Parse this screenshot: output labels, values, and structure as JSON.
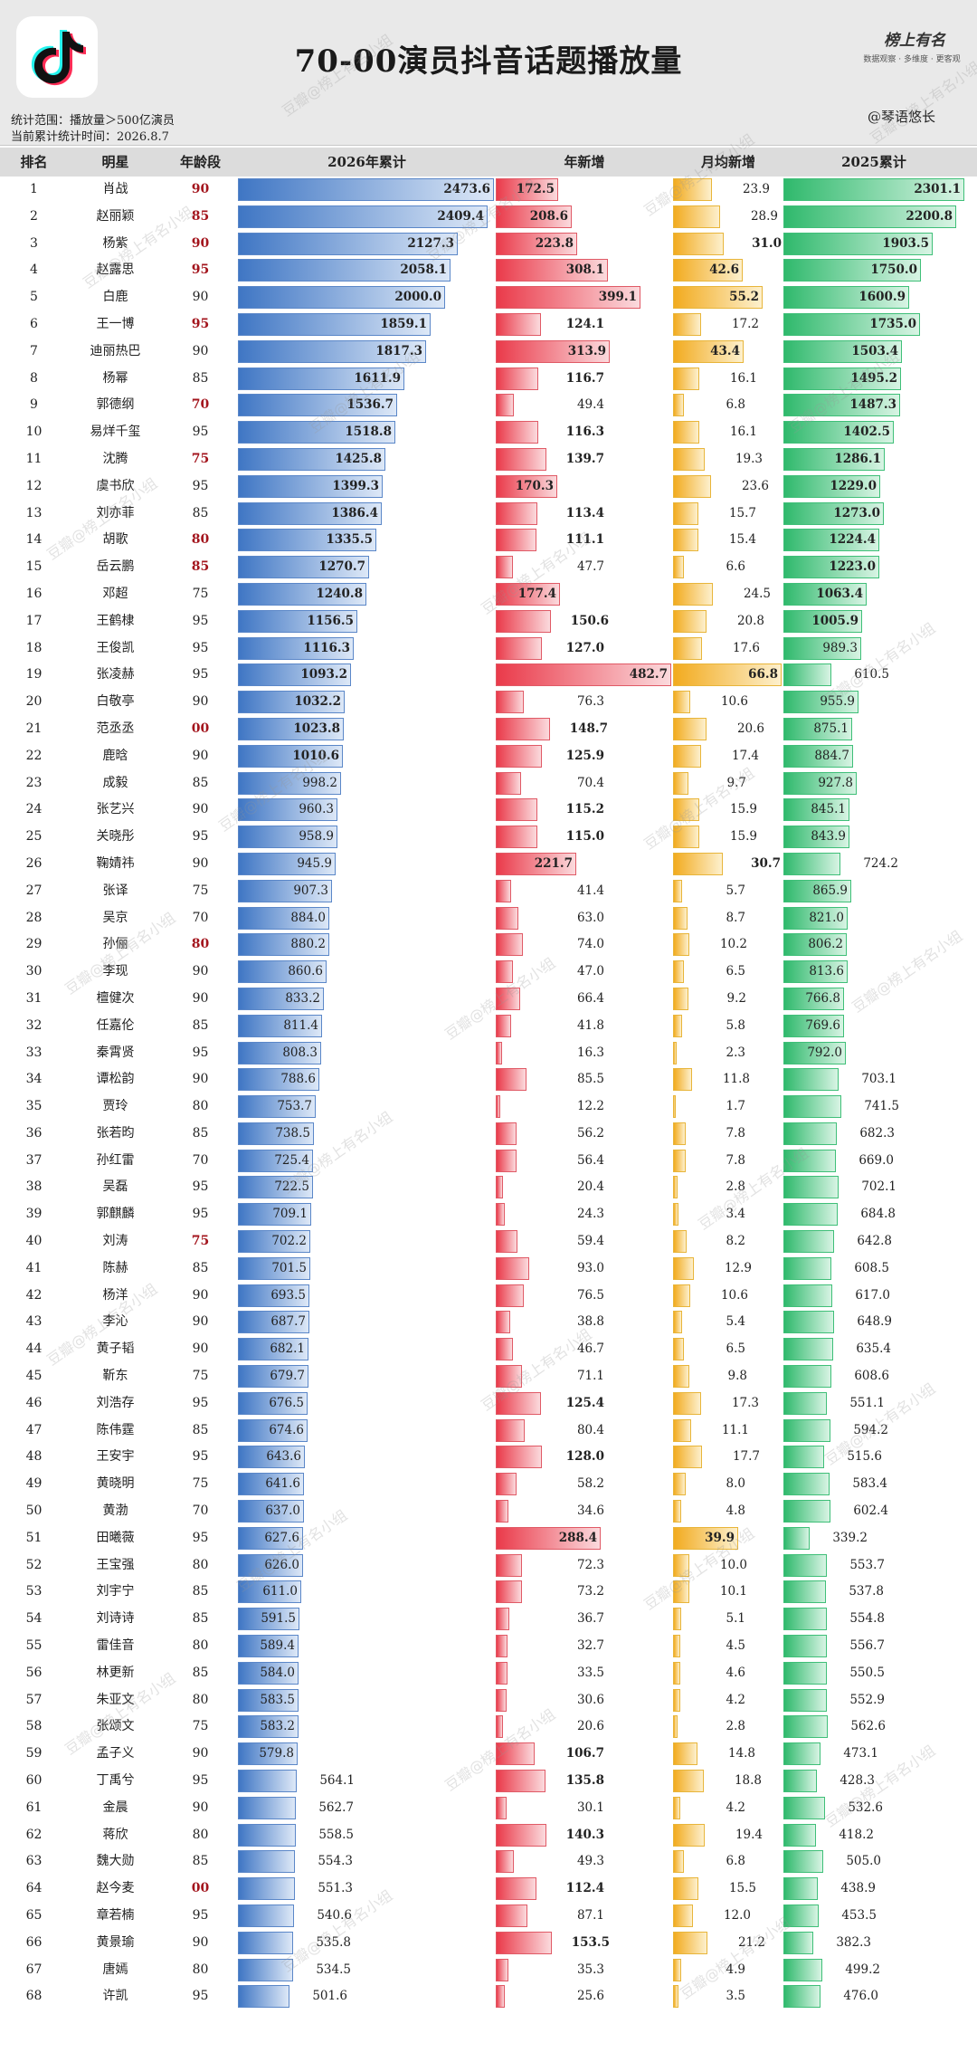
{
  "header": {
    "title": "70-00演员抖音话题播放量",
    "scope": "统计范围：播放量＞500亿演员",
    "time": "当前累计统计时间：2026.8.7",
    "credit": "@琴语悠长",
    "logo_text": "榜上有名",
    "logo_sub": "数据观察 · 多维度 · 更客观",
    "watermark": "豆瓣@榜上有名小组"
  },
  "columns": {
    "rank": "排名",
    "name": "明星",
    "age": "年龄段",
    "total2026": "2026年累计",
    "year_new": "年新增",
    "monthly_new": "月均新增",
    "total2025": "2025累计"
  },
  "chart_data": {
    "type": "table",
    "title": "70-00演员抖音话题播放量",
    "scales": {
      "total2026": 2473.6,
      "year_new": 482.7,
      "monthly_new": 66.8,
      "total2025": 2301.1
    },
    "rows": [
      {
        "rank": "1",
        "name": "肖战",
        "age": "90",
        "age_hl": true,
        "t26": "2473.6",
        "yn": "172.5",
        "mn": "23.9",
        "t25": "2301.1",
        "b1": true,
        "b2": true,
        "b3": false,
        "b4": true
      },
      {
        "rank": "2",
        "name": "赵丽颖",
        "age": "85",
        "age_hl": true,
        "t26": "2409.4",
        "yn": "208.6",
        "mn": "28.9",
        "t25": "2200.8",
        "b1": true,
        "b2": true,
        "b3": false,
        "b4": true
      },
      {
        "rank": "3",
        "name": "杨紫",
        "age": "90",
        "age_hl": true,
        "t26": "2127.3",
        "yn": "223.8",
        "mn": "31.0",
        "t25": "1903.5",
        "b1": true,
        "b2": true,
        "b3": true,
        "b4": true
      },
      {
        "rank": "4",
        "name": "赵露思",
        "age": "95",
        "age_hl": true,
        "t26": "2058.1",
        "yn": "308.1",
        "mn": "42.6",
        "t25": "1750.0",
        "b1": true,
        "b2": true,
        "b3": true,
        "b4": true
      },
      {
        "rank": "5",
        "name": "白鹿",
        "age": "90",
        "age_hl": false,
        "t26": "2000.0",
        "yn": "399.1",
        "mn": "55.2",
        "t25": "1600.9",
        "b1": true,
        "b2": true,
        "b3": true,
        "b4": true
      },
      {
        "rank": "6",
        "name": "王一博",
        "age": "95",
        "age_hl": true,
        "t26": "1859.1",
        "yn": "124.1",
        "mn": "17.2",
        "t25": "1735.0",
        "b1": true,
        "b2": true,
        "b3": false,
        "b4": true
      },
      {
        "rank": "7",
        "name": "迪丽热巴",
        "age": "90",
        "age_hl": false,
        "t26": "1817.3",
        "yn": "313.9",
        "mn": "43.4",
        "t25": "1503.4",
        "b1": true,
        "b2": true,
        "b3": true,
        "b4": true
      },
      {
        "rank": "8",
        "name": "杨幂",
        "age": "85",
        "age_hl": false,
        "t26": "1611.9",
        "yn": "116.7",
        "mn": "16.1",
        "t25": "1495.2",
        "b1": true,
        "b2": true,
        "b3": false,
        "b4": true
      },
      {
        "rank": "9",
        "name": "郭德纲",
        "age": "70",
        "age_hl": true,
        "t26": "1536.7",
        "yn": "49.4",
        "mn": "6.8",
        "t25": "1487.3",
        "b1": true,
        "b2": false,
        "b3": false,
        "b4": true
      },
      {
        "rank": "10",
        "name": "易烊千玺",
        "age": "95",
        "age_hl": false,
        "t26": "1518.8",
        "yn": "116.3",
        "mn": "16.1",
        "t25": "1402.5",
        "b1": true,
        "b2": true,
        "b3": false,
        "b4": true
      },
      {
        "rank": "11",
        "name": "沈腾",
        "age": "75",
        "age_hl": true,
        "t26": "1425.8",
        "yn": "139.7",
        "mn": "19.3",
        "t25": "1286.1",
        "b1": true,
        "b2": true,
        "b3": false,
        "b4": true
      },
      {
        "rank": "12",
        "name": "虞书欣",
        "age": "95",
        "age_hl": false,
        "t26": "1399.3",
        "yn": "170.3",
        "mn": "23.6",
        "t25": "1229.0",
        "b1": true,
        "b2": true,
        "b3": false,
        "b4": true
      },
      {
        "rank": "13",
        "name": "刘亦菲",
        "age": "85",
        "age_hl": false,
        "t26": "1386.4",
        "yn": "113.4",
        "mn": "15.7",
        "t25": "1273.0",
        "b1": true,
        "b2": true,
        "b3": false,
        "b4": true
      },
      {
        "rank": "14",
        "name": "胡歌",
        "age": "80",
        "age_hl": true,
        "t26": "1335.5",
        "yn": "111.1",
        "mn": "15.4",
        "t25": "1224.4",
        "b1": true,
        "b2": true,
        "b3": false,
        "b4": true
      },
      {
        "rank": "15",
        "name": "岳云鹏",
        "age": "85",
        "age_hl": true,
        "t26": "1270.7",
        "yn": "47.7",
        "mn": "6.6",
        "t25": "1223.0",
        "b1": true,
        "b2": false,
        "b3": false,
        "b4": true
      },
      {
        "rank": "16",
        "name": "邓超",
        "age": "75",
        "age_hl": false,
        "t26": "1240.8",
        "yn": "177.4",
        "mn": "24.5",
        "t25": "1063.4",
        "b1": true,
        "b2": true,
        "b3": false,
        "b4": true
      },
      {
        "rank": "17",
        "name": "王鹤棣",
        "age": "95",
        "age_hl": false,
        "t26": "1156.5",
        "yn": "150.6",
        "mn": "20.8",
        "t25": "1005.9",
        "b1": true,
        "b2": true,
        "b3": false,
        "b4": true
      },
      {
        "rank": "18",
        "name": "王俊凯",
        "age": "95",
        "age_hl": false,
        "t26": "1116.3",
        "yn": "127.0",
        "mn": "17.6",
        "t25": "989.3",
        "b1": true,
        "b2": true,
        "b3": false,
        "b4": false
      },
      {
        "rank": "19",
        "name": "张凌赫",
        "age": "95",
        "age_hl": false,
        "t26": "1093.2",
        "yn": "482.7",
        "mn": "66.8",
        "t25": "610.5",
        "b1": true,
        "b2": true,
        "b3": true,
        "b4": false
      },
      {
        "rank": "20",
        "name": "白敬亭",
        "age": "90",
        "age_hl": false,
        "t26": "1032.2",
        "yn": "76.3",
        "mn": "10.6",
        "t25": "955.9",
        "b1": true,
        "b2": false,
        "b3": false,
        "b4": false
      },
      {
        "rank": "21",
        "name": "范丞丞",
        "age": "00",
        "age_hl": true,
        "t26": "1023.8",
        "yn": "148.7",
        "mn": "20.6",
        "t25": "875.1",
        "b1": true,
        "b2": true,
        "b3": false,
        "b4": false
      },
      {
        "rank": "22",
        "name": "鹿晗",
        "age": "90",
        "age_hl": false,
        "t26": "1010.6",
        "yn": "125.9",
        "mn": "17.4",
        "t25": "884.7",
        "b1": true,
        "b2": true,
        "b3": false,
        "b4": false
      },
      {
        "rank": "23",
        "name": "成毅",
        "age": "85",
        "age_hl": false,
        "t26": "998.2",
        "yn": "70.4",
        "mn": "9.7",
        "t25": "927.8",
        "b1": false,
        "b2": false,
        "b3": false,
        "b4": false
      },
      {
        "rank": "24",
        "name": "张艺兴",
        "age": "90",
        "age_hl": false,
        "t26": "960.3",
        "yn": "115.2",
        "mn": "15.9",
        "t25": "845.1",
        "b1": false,
        "b2": true,
        "b3": false,
        "b4": false
      },
      {
        "rank": "25",
        "name": "关晓彤",
        "age": "95",
        "age_hl": false,
        "t26": "958.9",
        "yn": "115.0",
        "mn": "15.9",
        "t25": "843.9",
        "b1": false,
        "b2": true,
        "b3": false,
        "b4": false
      },
      {
        "rank": "26",
        "name": "鞠婧祎",
        "age": "90",
        "age_hl": false,
        "t26": "945.9",
        "yn": "221.7",
        "mn": "30.7",
        "t25": "724.2",
        "b1": false,
        "b2": true,
        "b3": true,
        "b4": false
      },
      {
        "rank": "27",
        "name": "张译",
        "age": "75",
        "age_hl": false,
        "t26": "907.3",
        "yn": "41.4",
        "mn": "5.7",
        "t25": "865.9",
        "b1": false,
        "b2": false,
        "b3": false,
        "b4": false
      },
      {
        "rank": "28",
        "name": "吴京",
        "age": "70",
        "age_hl": false,
        "t26": "884.0",
        "yn": "63.0",
        "mn": "8.7",
        "t25": "821.0",
        "b1": false,
        "b2": false,
        "b3": false,
        "b4": false
      },
      {
        "rank": "29",
        "name": "孙俪",
        "age": "80",
        "age_hl": true,
        "t26": "880.2",
        "yn": "74.0",
        "mn": "10.2",
        "t25": "806.2",
        "b1": false,
        "b2": false,
        "b3": false,
        "b4": false
      },
      {
        "rank": "30",
        "name": "李现",
        "age": "90",
        "age_hl": false,
        "t26": "860.6",
        "yn": "47.0",
        "mn": "6.5",
        "t25": "813.6",
        "b1": false,
        "b2": false,
        "b3": false,
        "b4": false
      },
      {
        "rank": "31",
        "name": "檀健次",
        "age": "90",
        "age_hl": false,
        "t26": "833.2",
        "yn": "66.4",
        "mn": "9.2",
        "t25": "766.8",
        "b1": false,
        "b2": false,
        "b3": false,
        "b4": false
      },
      {
        "rank": "32",
        "name": "任嘉伦",
        "age": "85",
        "age_hl": false,
        "t26": "811.4",
        "yn": "41.8",
        "mn": "5.8",
        "t25": "769.6",
        "b1": false,
        "b2": false,
        "b3": false,
        "b4": false
      },
      {
        "rank": "33",
        "name": "秦霄贤",
        "age": "95",
        "age_hl": false,
        "t26": "808.3",
        "yn": "16.3",
        "mn": "2.3",
        "t25": "792.0",
        "b1": false,
        "b2": false,
        "b3": false,
        "b4": false
      },
      {
        "rank": "34",
        "name": "谭松韵",
        "age": "90",
        "age_hl": false,
        "t26": "788.6",
        "yn": "85.5",
        "mn": "11.8",
        "t25": "703.1",
        "b1": false,
        "b2": false,
        "b3": false,
        "b4": false
      },
      {
        "rank": "35",
        "name": "贾玲",
        "age": "80",
        "age_hl": false,
        "t26": "753.7",
        "yn": "12.2",
        "mn": "1.7",
        "t25": "741.5",
        "b1": false,
        "b2": false,
        "b3": false,
        "b4": false
      },
      {
        "rank": "36",
        "name": "张若昀",
        "age": "85",
        "age_hl": false,
        "t26": "738.5",
        "yn": "56.2",
        "mn": "7.8",
        "t25": "682.3",
        "b1": false,
        "b2": false,
        "b3": false,
        "b4": false
      },
      {
        "rank": "37",
        "name": "孙红雷",
        "age": "70",
        "age_hl": false,
        "t26": "725.4",
        "yn": "56.4",
        "mn": "7.8",
        "t25": "669.0",
        "b1": false,
        "b2": false,
        "b3": false,
        "b4": false
      },
      {
        "rank": "38",
        "name": "吴磊",
        "age": "95",
        "age_hl": false,
        "t26": "722.5",
        "yn": "20.4",
        "mn": "2.8",
        "t25": "702.1",
        "b1": false,
        "b2": false,
        "b3": false,
        "b4": false
      },
      {
        "rank": "39",
        "name": "郭麒麟",
        "age": "95",
        "age_hl": false,
        "t26": "709.1",
        "yn": "24.3",
        "mn": "3.4",
        "t25": "684.8",
        "b1": false,
        "b2": false,
        "b3": false,
        "b4": false
      },
      {
        "rank": "40",
        "name": "刘涛",
        "age": "75",
        "age_hl": true,
        "t26": "702.2",
        "yn": "59.4",
        "mn": "8.2",
        "t25": "642.8",
        "b1": false,
        "b2": false,
        "b3": false,
        "b4": false
      },
      {
        "rank": "41",
        "name": "陈赫",
        "age": "85",
        "age_hl": false,
        "t26": "701.5",
        "yn": "93.0",
        "mn": "12.9",
        "t25": "608.5",
        "b1": false,
        "b2": false,
        "b3": false,
        "b4": false
      },
      {
        "rank": "42",
        "name": "杨洋",
        "age": "90",
        "age_hl": false,
        "t26": "693.5",
        "yn": "76.5",
        "mn": "10.6",
        "t25": "617.0",
        "b1": false,
        "b2": false,
        "b3": false,
        "b4": false
      },
      {
        "rank": "43",
        "name": "李沁",
        "age": "90",
        "age_hl": false,
        "t26": "687.7",
        "yn": "38.8",
        "mn": "5.4",
        "t25": "648.9",
        "b1": false,
        "b2": false,
        "b3": false,
        "b4": false
      },
      {
        "rank": "44",
        "name": "黄子韬",
        "age": "90",
        "age_hl": false,
        "t26": "682.1",
        "yn": "46.7",
        "mn": "6.5",
        "t25": "635.4",
        "b1": false,
        "b2": false,
        "b3": false,
        "b4": false
      },
      {
        "rank": "45",
        "name": "靳东",
        "age": "75",
        "age_hl": false,
        "t26": "679.7",
        "yn": "71.1",
        "mn": "9.8",
        "t25": "608.6",
        "b1": false,
        "b2": false,
        "b3": false,
        "b4": false
      },
      {
        "rank": "46",
        "name": "刘浩存",
        "age": "95",
        "age_hl": false,
        "t26": "676.5",
        "yn": "125.4",
        "mn": "17.3",
        "t25": "551.1",
        "b1": false,
        "b2": true,
        "b3": false,
        "b4": false
      },
      {
        "rank": "47",
        "name": "陈伟霆",
        "age": "85",
        "age_hl": false,
        "t26": "674.6",
        "yn": "80.4",
        "mn": "11.1",
        "t25": "594.2",
        "b1": false,
        "b2": false,
        "b3": false,
        "b4": false
      },
      {
        "rank": "48",
        "name": "王安宇",
        "age": "95",
        "age_hl": false,
        "t26": "643.6",
        "yn": "128.0",
        "mn": "17.7",
        "t25": "515.6",
        "b1": false,
        "b2": true,
        "b3": false,
        "b4": false
      },
      {
        "rank": "49",
        "name": "黄晓明",
        "age": "75",
        "age_hl": false,
        "t26": "641.6",
        "yn": "58.2",
        "mn": "8.0",
        "t25": "583.4",
        "b1": false,
        "b2": false,
        "b3": false,
        "b4": false
      },
      {
        "rank": "50",
        "name": "黄渤",
        "age": "70",
        "age_hl": false,
        "t26": "637.0",
        "yn": "34.6",
        "mn": "4.8",
        "t25": "602.4",
        "b1": false,
        "b2": false,
        "b3": false,
        "b4": false
      },
      {
        "rank": "51",
        "name": "田曦薇",
        "age": "95",
        "age_hl": false,
        "t26": "627.6",
        "yn": "288.4",
        "mn": "39.9",
        "t25": "339.2",
        "b1": false,
        "b2": true,
        "b3": true,
        "b4": false
      },
      {
        "rank": "52",
        "name": "王宝强",
        "age": "80",
        "age_hl": false,
        "t26": "626.0",
        "yn": "72.3",
        "mn": "10.0",
        "t25": "553.7",
        "b1": false,
        "b2": false,
        "b3": false,
        "b4": false
      },
      {
        "rank": "53",
        "name": "刘宇宁",
        "age": "85",
        "age_hl": false,
        "t26": "611.0",
        "yn": "73.2",
        "mn": "10.1",
        "t25": "537.8",
        "b1": false,
        "b2": false,
        "b3": false,
        "b4": false
      },
      {
        "rank": "54",
        "name": "刘诗诗",
        "age": "85",
        "age_hl": false,
        "t26": "591.5",
        "yn": "36.7",
        "mn": "5.1",
        "t25": "554.8",
        "b1": false,
        "b2": false,
        "b3": false,
        "b4": false
      },
      {
        "rank": "55",
        "name": "雷佳音",
        "age": "80",
        "age_hl": false,
        "t26": "589.4",
        "yn": "32.7",
        "mn": "4.5",
        "t25": "556.7",
        "b1": false,
        "b2": false,
        "b3": false,
        "b4": false
      },
      {
        "rank": "56",
        "name": "林更新",
        "age": "85",
        "age_hl": false,
        "t26": "584.0",
        "yn": "33.5",
        "mn": "4.6",
        "t25": "550.5",
        "b1": false,
        "b2": false,
        "b3": false,
        "b4": false
      },
      {
        "rank": "57",
        "name": "朱亚文",
        "age": "80",
        "age_hl": false,
        "t26": "583.5",
        "yn": "30.6",
        "mn": "4.2",
        "t25": "552.9",
        "b1": false,
        "b2": false,
        "b3": false,
        "b4": false
      },
      {
        "rank": "58",
        "name": "张颂文",
        "age": "75",
        "age_hl": false,
        "t26": "583.2",
        "yn": "20.6",
        "mn": "2.8",
        "t25": "562.6",
        "b1": false,
        "b2": false,
        "b3": false,
        "b4": false
      },
      {
        "rank": "59",
        "name": "孟子义",
        "age": "90",
        "age_hl": false,
        "t26": "579.8",
        "yn": "106.7",
        "mn": "14.8",
        "t25": "473.1",
        "b1": false,
        "b2": true,
        "b3": false,
        "b4": false
      },
      {
        "rank": "60",
        "name": "丁禹兮",
        "age": "95",
        "age_hl": false,
        "t26": "564.1",
        "yn": "135.8",
        "mn": "18.8",
        "t25": "428.3",
        "b1": false,
        "b2": true,
        "b3": false,
        "b4": false
      },
      {
        "rank": "61",
        "name": "金晨",
        "age": "90",
        "age_hl": false,
        "t26": "562.7",
        "yn": "30.1",
        "mn": "4.2",
        "t25": "532.6",
        "b1": false,
        "b2": false,
        "b3": false,
        "b4": false
      },
      {
        "rank": "62",
        "name": "蒋欣",
        "age": "80",
        "age_hl": false,
        "t26": "558.5",
        "yn": "140.3",
        "mn": "19.4",
        "t25": "418.2",
        "b1": false,
        "b2": true,
        "b3": false,
        "b4": false
      },
      {
        "rank": "63",
        "name": "魏大勋",
        "age": "85",
        "age_hl": false,
        "t26": "554.3",
        "yn": "49.3",
        "mn": "6.8",
        "t25": "505.0",
        "b1": false,
        "b2": false,
        "b3": false,
        "b4": false
      },
      {
        "rank": "64",
        "name": "赵今麦",
        "age": "00",
        "age_hl": true,
        "t26": "551.3",
        "yn": "112.4",
        "mn": "15.5",
        "t25": "438.9",
        "b1": false,
        "b2": true,
        "b3": false,
        "b4": false
      },
      {
        "rank": "65",
        "name": "章若楠",
        "age": "95",
        "age_hl": false,
        "t26": "540.6",
        "yn": "87.1",
        "mn": "12.0",
        "t25": "453.5",
        "b1": false,
        "b2": false,
        "b3": false,
        "b4": false
      },
      {
        "rank": "66",
        "name": "黄景瑜",
        "age": "90",
        "age_hl": false,
        "t26": "535.8",
        "yn": "153.5",
        "mn": "21.2",
        "t25": "382.3",
        "b1": false,
        "b2": true,
        "b3": false,
        "b4": false
      },
      {
        "rank": "67",
        "name": "唐嫣",
        "age": "80",
        "age_hl": false,
        "t26": "534.5",
        "yn": "35.3",
        "mn": "4.9",
        "t25": "499.2",
        "b1": false,
        "b2": false,
        "b3": false,
        "b4": false
      },
      {
        "rank": "68",
        "name": "许凯",
        "age": "95",
        "age_hl": false,
        "t26": "501.6",
        "yn": "25.6",
        "mn": "3.5",
        "t25": "476.0",
        "b1": false,
        "b2": false,
        "b3": false,
        "b4": false
      }
    ]
  }
}
